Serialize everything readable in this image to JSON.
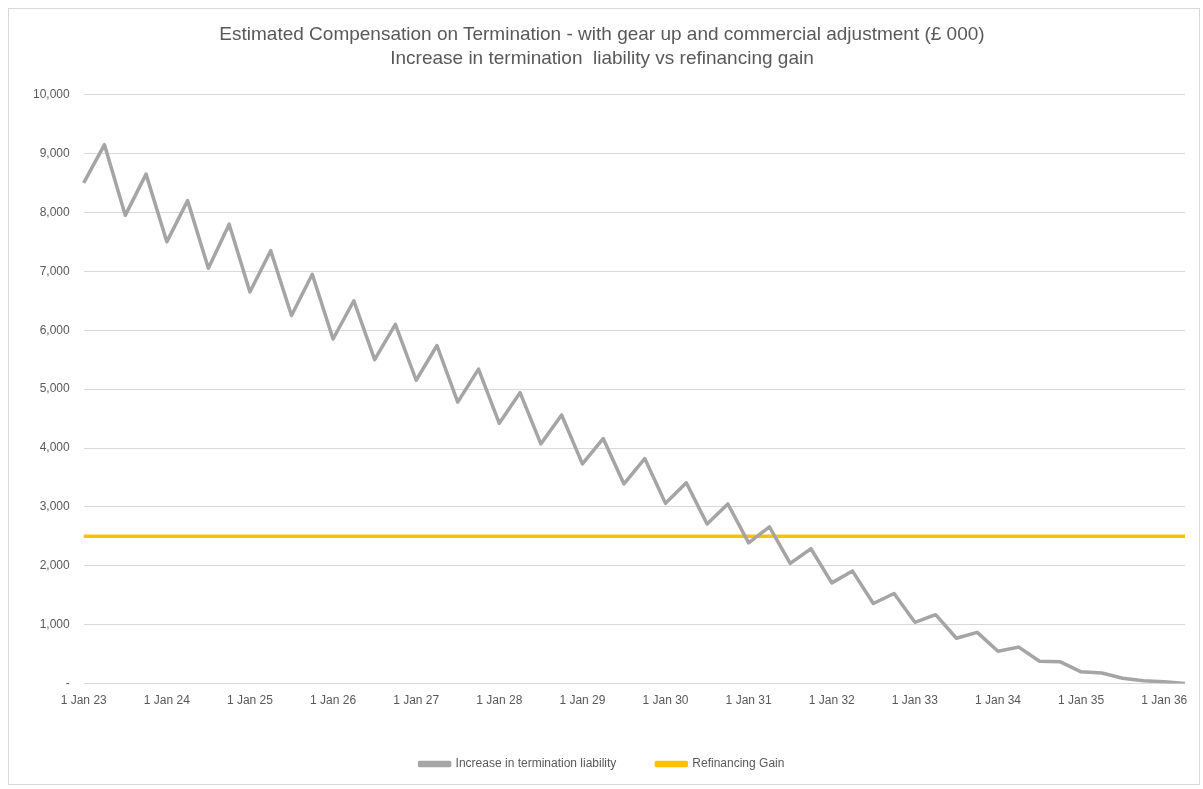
{
  "chart_data": {
    "type": "line",
    "title": "Estimated Compensation on Termination - with gear up and commercial adjustment (£ 000)",
    "subtitle": "Increase in termination  liability vs refinancing gain",
    "categories": [
      "1 Jan 23",
      null,
      null,
      null,
      "1 Jan 24",
      null,
      null,
      null,
      "1 Jan 25",
      null,
      null,
      null,
      "1 Jan 26",
      null,
      null,
      null,
      "1 Jan 27",
      null,
      null,
      null,
      "1 Jan 28",
      null,
      null,
      null,
      "1 Jan 29",
      null,
      null,
      null,
      "1 Jan 30",
      null,
      null,
      null,
      "1 Jan 31",
      null,
      null,
      null,
      "1 Jan 32",
      null,
      null,
      null,
      "1 Jan 33",
      null,
      null,
      null,
      "1 Jan 34",
      null,
      null,
      null,
      "1 Jan 35",
      null,
      null,
      null,
      "1 Jan 36",
      null
    ],
    "series": [
      {
        "name": "Increase in termination liability",
        "color": "#a5a5a5",
        "values": [
          8500,
          9150,
          7950,
          8650,
          7500,
          8200,
          7050,
          7800,
          6650,
          7350,
          6250,
          6950,
          5850,
          6500,
          5500,
          6100,
          5150,
          5740,
          4780,
          5340,
          4420,
          4940,
          4070,
          4560,
          3730,
          4160,
          3390,
          3820,
          3060,
          3410,
          2710,
          3050,
          2390,
          2660,
          2040,
          2290,
          1710,
          1910,
          1360,
          1530,
          1040,
          1170,
          770,
          870,
          550,
          620,
          380,
          370,
          200,
          180,
          90,
          50,
          30,
          0
        ]
      },
      {
        "name": "Refinancing Gain",
        "color": "#ffc000",
        "values": [
          2500,
          2500,
          2500,
          2500,
          2500,
          2500,
          2500,
          2500,
          2500,
          2500,
          2500,
          2500,
          2500,
          2500,
          2500,
          2500,
          2500,
          2500,
          2500,
          2500,
          2500,
          2500,
          2500,
          2500,
          2500,
          2500,
          2500,
          2500,
          2500,
          2500,
          2500,
          2500,
          2500,
          2500,
          2500,
          2500,
          2500,
          2500,
          2500,
          2500,
          2500,
          2500,
          2500,
          2500,
          2500,
          2500,
          2500,
          2500,
          2500,
          2500,
          2500,
          2500,
          2500,
          2500
        ]
      }
    ],
    "ylim": [
      0,
      10000
    ],
    "yticks": [
      {
        "value": 0,
        "label": "-"
      },
      {
        "value": 1000,
        "label": "1,000"
      },
      {
        "value": 2000,
        "label": "2,000"
      },
      {
        "value": 3000,
        "label": "3,000"
      },
      {
        "value": 4000,
        "label": "4,000"
      },
      {
        "value": 5000,
        "label": "5,000"
      },
      {
        "value": 6000,
        "label": "6,000"
      },
      {
        "value": 7000,
        "label": "7,000"
      },
      {
        "value": 8000,
        "label": "8,000"
      },
      {
        "value": 9000,
        "label": "9,000"
      },
      {
        "value": 10000,
        "label": "10,000"
      }
    ],
    "grid": "y",
    "legend": "bottom",
    "marker": "none",
    "line_style": "solid"
  }
}
